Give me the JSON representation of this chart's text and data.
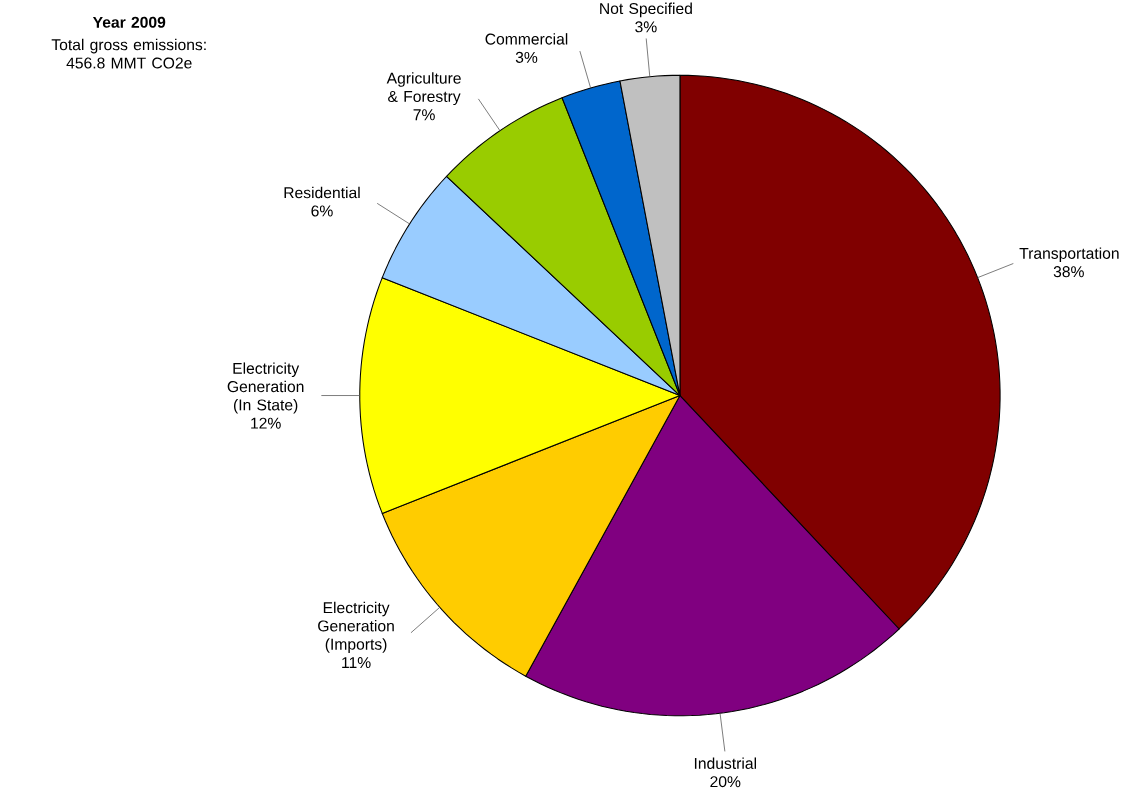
{
  "chart_data": {
    "type": "pie",
    "title": "Year 2009",
    "subtitle": "Total gross emissions: 456.8 MMT CO2e",
    "categories": [
      "Transportation",
      "Industrial",
      "Electricity Generation (Imports)",
      "Electricity Generation (In State)",
      "Residential",
      "Agriculture & Forestry",
      "Commercial",
      "Not Specified"
    ],
    "values": [
      38,
      20,
      11,
      12,
      6,
      7,
      3,
      3
    ],
    "value_labels": [
      "38%",
      "20%",
      "11%",
      "12%",
      "6%",
      "7%",
      "3%",
      "3%"
    ],
    "colors": [
      "#800000",
      "#800080",
      "#ffcc00",
      "#ffff00",
      "#99ccff",
      "#99cc00",
      "#0066cc",
      "#c0c0c0"
    ]
  }
}
